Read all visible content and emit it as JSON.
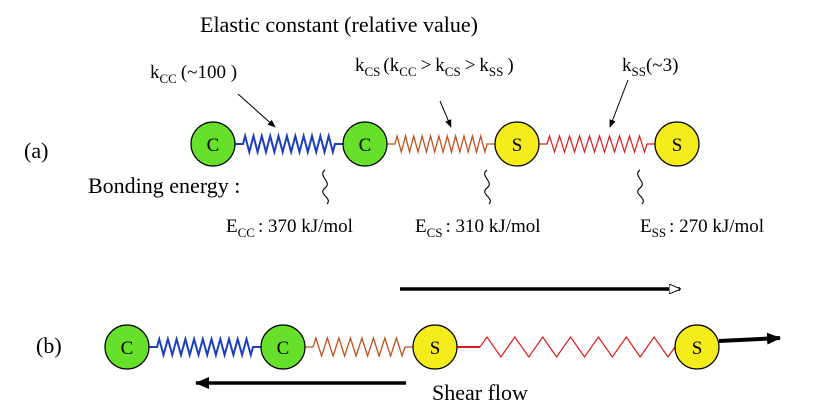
{
  "title": "Elastic constant (relative value)",
  "panel_a_label": "(a)",
  "panel_b_label": "(b)",
  "bonding_energy_label": "Bonding energy :",
  "atoms": {
    "carbon": "C",
    "sulfur": "S"
  },
  "elastic_constants": {
    "kcc": {
      "main": "k",
      "sub": "CC",
      "note": "(~100 )"
    },
    "kcs": {
      "main": "k",
      "sub": "CS",
      "open": "(k",
      "sub_cc": "CC",
      "gt1": ">",
      "k2": "k",
      "sub_cs2": "CS",
      "gt2": ">",
      "k3": "k",
      "sub_ss": "SS",
      "close": ")"
    },
    "kss": {
      "main": "k",
      "sub": "SS",
      "note": "(~3)"
    }
  },
  "energies": {
    "ecc": {
      "main": "E",
      "sub": "CC",
      "value": ": 370  kJ/mol"
    },
    "ecs": {
      "main": "E",
      "sub": "CS",
      "value": ": 310  kJ/mol"
    },
    "ess": {
      "main": "E",
      "sub": "SS",
      "value": ": 270  kJ/mol"
    }
  },
  "shear_flow_label": "Shear flow",
  "colors": {
    "carbon_fill": "#66e02a",
    "sulfur_fill": "#f5ec1c",
    "cc_spring": "#1c3fbf",
    "cs_spring": "#c0501e",
    "ss_spring": "#e01818"
  }
}
